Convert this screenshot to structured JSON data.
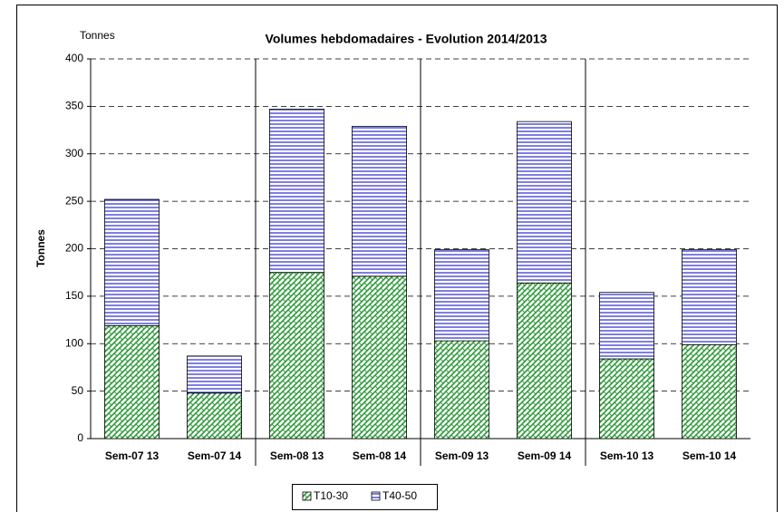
{
  "chart_data": {
    "type": "stacked_bar",
    "title": "Volumes hebdomadaires - Evolution 2014/2013",
    "unit_label": "Tonnes",
    "y_label": "Tonnes",
    "categories": [
      "Sem-07 13",
      "Sem-07 14",
      "Sem-08 13",
      "Sem-08 14",
      "Sem-09 13",
      "Sem-09 14",
      "Sem-10 13",
      "Sem-10 14"
    ],
    "series": [
      {
        "name": "T10-30",
        "color": "#2e9a3a",
        "values": [
          119,
          48,
          175,
          171,
          103,
          164,
          84,
          99
        ]
      },
      {
        "name": "T40-50",
        "color": "#2a2ad0",
        "values": [
          133,
          39,
          172,
          158,
          96,
          170,
          70,
          100
        ]
      }
    ],
    "ylim": [
      0,
      400
    ],
    "yticks": [
      0,
      50,
      100,
      150,
      200,
      250,
      300,
      350,
      400
    ],
    "grid": true
  }
}
